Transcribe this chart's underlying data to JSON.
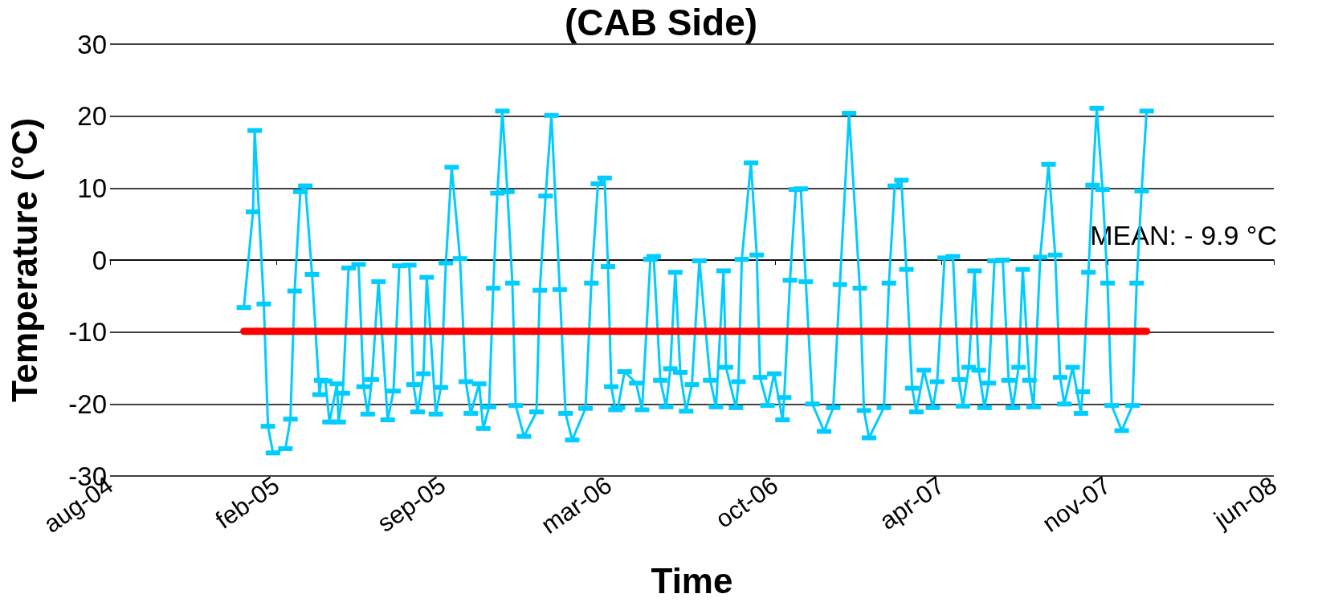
{
  "chart_data": {
    "type": "line",
    "title": "(CAB Side)",
    "xlabel": "Time",
    "ylabel": "Temperature (°C)",
    "xlim": [
      "2004-08-01",
      "2008-06-01"
    ],
    "xticks": [
      {
        "value": "2004-08-01",
        "label": "aug-04"
      },
      {
        "value": "2005-02-17",
        "label": "feb-05"
      },
      {
        "value": "2005-09-05",
        "label": "sep-05"
      },
      {
        "value": "2006-03-24",
        "label": "mar-06"
      },
      {
        "value": "2006-10-10",
        "label": "oct-06"
      },
      {
        "value": "2007-04-28",
        "label": "apr-07"
      },
      {
        "value": "2007-11-14",
        "label": "nov-07"
      },
      {
        "value": "2008-06-01",
        "label": "jun-08"
      }
    ],
    "ylim": [
      -30,
      30
    ],
    "yticks": [
      -30,
      -20,
      -10,
      0,
      10,
      20,
      30
    ],
    "grid": "y",
    "marker": "square",
    "line_style": "solid",
    "x": [
      "2005-01-09",
      "2005-01-20",
      "2005-01-22",
      "2005-02-02",
      "2005-02-07",
      "2005-02-13",
      "2005-02-28",
      "2005-03-06",
      "2005-03-11",
      "2005-03-18",
      "2005-03-24",
      "2005-04-01",
      "2005-04-10",
      "2005-04-12",
      "2005-04-17",
      "2005-04-22",
      "2005-05-01",
      "2005-05-03",
      "2005-05-08",
      "2005-05-15",
      "2005-05-27",
      "2005-06-02",
      "2005-06-07",
      "2005-06-12",
      "2005-06-20",
      "2005-07-01",
      "2005-07-08",
      "2005-07-15",
      "2005-07-27",
      "2005-08-01",
      "2005-08-06",
      "2005-08-13",
      "2005-08-17",
      "2005-08-28",
      "2005-09-03",
      "2005-09-09",
      "2005-09-16",
      "2005-09-26",
      "2005-10-03",
      "2005-10-09",
      "2005-10-19",
      "2005-10-24",
      "2005-10-31",
      "2005-11-05",
      "2005-11-10",
      "2005-11-16",
      "2005-11-22",
      "2005-11-28",
      "2005-12-02",
      "2005-12-12",
      "2005-12-27",
      "2005-12-31",
      "2006-01-07",
      "2006-01-14",
      "2006-01-24",
      "2006-01-31",
      "2006-02-08",
      "2006-02-24",
      "2006-03-03",
      "2006-03-11",
      "2006-03-19",
      "2006-03-23",
      "2006-03-27",
      "2006-04-01",
      "2006-04-04",
      "2006-04-12",
      "2006-04-26",
      "2006-05-03",
      "2006-05-13",
      "2006-05-17",
      "2006-05-25",
      "2006-06-01",
      "2006-06-06",
      "2006-06-12",
      "2006-06-18",
      "2006-06-25",
      "2006-07-02",
      "2006-07-11",
      "2006-07-24",
      "2006-07-31",
      "2006-08-09",
      "2006-08-12",
      "2006-08-24",
      "2006-08-27",
      "2006-08-31",
      "2006-09-11",
      "2006-09-18",
      "2006-09-22",
      "2006-10-01",
      "2006-10-09",
      "2006-10-19",
      "2006-10-21",
      "2006-10-28",
      "2006-11-04",
      "2006-11-10",
      "2006-11-16",
      "2006-11-24",
      "2006-12-08",
      "2006-12-19",
      "2006-12-27",
      "2007-01-07",
      "2007-01-20",
      "2007-01-25",
      "2007-01-31",
      "2007-02-18",
      "2007-02-24",
      "2007-03-03",
      "2007-03-11",
      "2007-03-17",
      "2007-03-24",
      "2007-03-29",
      "2007-04-07",
      "2007-04-18",
      "2007-04-23",
      "2007-05-02",
      "2007-05-12",
      "2007-05-19",
      "2007-05-24",
      "2007-05-31",
      "2007-06-07",
      "2007-06-12",
      "2007-06-19",
      "2007-06-24",
      "2007-07-01",
      "2007-07-11",
      "2007-07-18",
      "2007-07-23",
      "2007-07-30",
      "2007-08-04",
      "2007-08-12",
      "2007-08-17",
      "2007-08-25",
      "2007-09-04",
      "2007-09-12",
      "2007-09-18",
      "2007-09-23",
      "2007-10-03",
      "2007-10-13",
      "2007-10-15",
      "2007-10-22",
      "2007-10-27",
      "2007-11-01",
      "2007-11-08",
      "2007-11-14",
      "2007-11-19",
      "2007-12-01",
      "2007-12-14",
      "2007-12-19",
      "2007-12-25",
      "2007-12-31"
    ],
    "series": [
      {
        "color": "#00ccff",
        "values": [
          -6.6,
          6.7,
          18.0,
          -6.1,
          -23.1,
          -26.8,
          -26.2,
          -22.1,
          -4.3,
          9.5,
          10.3,
          -2.0,
          -18.7,
          -16.7,
          -16.8,
          -22.5,
          -17.2,
          -22.5,
          -18.5,
          -1.1,
          -0.6,
          -17.6,
          -21.4,
          -16.6,
          -3.0,
          -22.2,
          -18.2,
          -0.8,
          -0.7,
          -17.3,
          -21.1,
          -15.8,
          -2.4,
          -21.4,
          -17.7,
          -0.4,
          12.9,
          0.2,
          -16.9,
          -21.3,
          -17.2,
          -23.4,
          -20.4,
          -3.9,
          9.3,
          20.7,
          9.5,
          -3.2,
          -20.2,
          -24.5,
          -21.1,
          -4.2,
          8.9,
          20.1,
          -4.1,
          -21.3,
          -25.0,
          -20.6,
          -3.2,
          10.6,
          11.4,
          -0.9,
          -17.6,
          -20.8,
          -20.5,
          -15.5,
          -17.1,
          -20.8,
          0.1,
          0.5,
          -16.7,
          -20.4,
          -15.1,
          -1.7,
          -15.6,
          -21.0,
          -17.3,
          -0.1,
          -16.7,
          -20.4,
          -1.5,
          -14.9,
          -20.5,
          -16.9,
          0.1,
          13.5,
          0.7,
          -16.3,
          -20.2,
          -15.8,
          -22.2,
          -19.1,
          -2.8,
          9.8,
          9.9,
          -3.0,
          -20.0,
          -23.8,
          -20.5,
          -3.4,
          20.4,
          -3.9,
          -20.9,
          -24.7,
          -20.5,
          -3.2,
          10.3,
          11.1,
          -1.3,
          -17.8,
          -21.1,
          -15.3,
          -20.5,
          -16.9,
          0.3,
          0.5,
          -16.6,
          -20.3,
          -14.9,
          -1.5,
          -15.3,
          -20.5,
          -17.1,
          -0.1,
          0.0,
          -16.7,
          -20.5,
          -14.9,
          -1.3,
          -16.7,
          -20.4,
          0.4,
          13.3,
          0.7,
          -16.3,
          -20.0,
          -14.9,
          -21.3,
          -18.3,
          -1.7,
          10.4,
          21.1,
          9.8,
          -3.2,
          -20.2,
          -23.7,
          -20.2,
          -3.2,
          9.6,
          20.7
        ]
      }
    ],
    "ref_lines": [
      {
        "axis": "y",
        "value": -9.9,
        "color": "#ff0000"
      }
    ],
    "annotations": [
      "MEAN: - 9.9 °C"
    ]
  }
}
